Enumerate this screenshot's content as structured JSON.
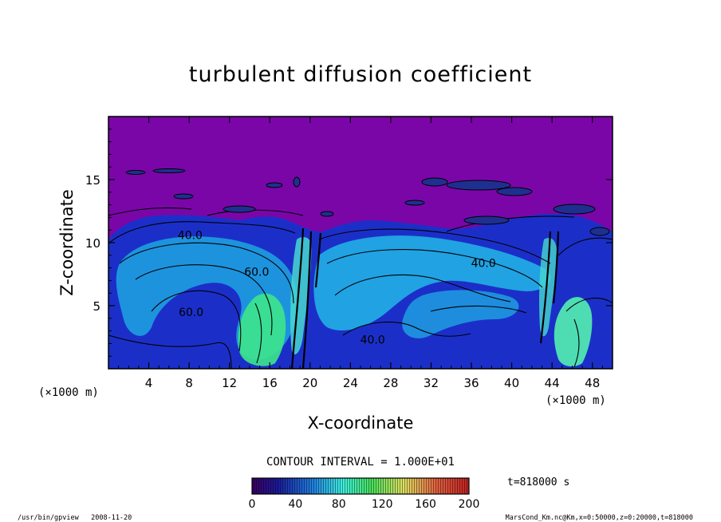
{
  "chart_data": {
    "type": "heatmap",
    "title": "turbulent diffusion coefficient",
    "xlabel": "X-coordinate",
    "ylabel": "Z-coordinate",
    "x_unit": "(×1000 m)",
    "y_unit": "(×1000 m)",
    "xlim": [
      0,
      50
    ],
    "ylim": [
      0,
      20
    ],
    "x_ticks": [
      4,
      8,
      12,
      16,
      20,
      24,
      28,
      32,
      36,
      40,
      44,
      48
    ],
    "y_ticks": [
      5,
      10,
      15
    ],
    "contour_interval_text": "CONTOUR INTERVAL = 1.000E+01",
    "colorbar_ticks": [
      0,
      40,
      80,
      120,
      160,
      200
    ],
    "colorbar_range": [
      0,
      200
    ],
    "time_label": "t=818000 s",
    "contour_labels": [
      {
        "text": "40.0",
        "x": 8.1,
        "z": 10.6
      },
      {
        "text": "60.0",
        "x": 14.7,
        "z": 7.7
      },
      {
        "text": "60.0",
        "x": 8.2,
        "z": 4.5
      },
      {
        "text": "40.0",
        "x": 26.2,
        "z": 2.3
      },
      {
        "text": "40.0",
        "x": 37.2,
        "z": 8.4
      }
    ],
    "colors": {
      "background_field": "#7a06a8",
      "field_low": "#1a2fd0",
      "field_mid": "#1fb4e0",
      "field_high": "#3ef08a"
    }
  },
  "footer": {
    "left": "/usr/bin/gpview   2008-11-20",
    "right": "MarsCond_Km.nc@Km,x=0:50000,z=0:20000,t=818000"
  }
}
